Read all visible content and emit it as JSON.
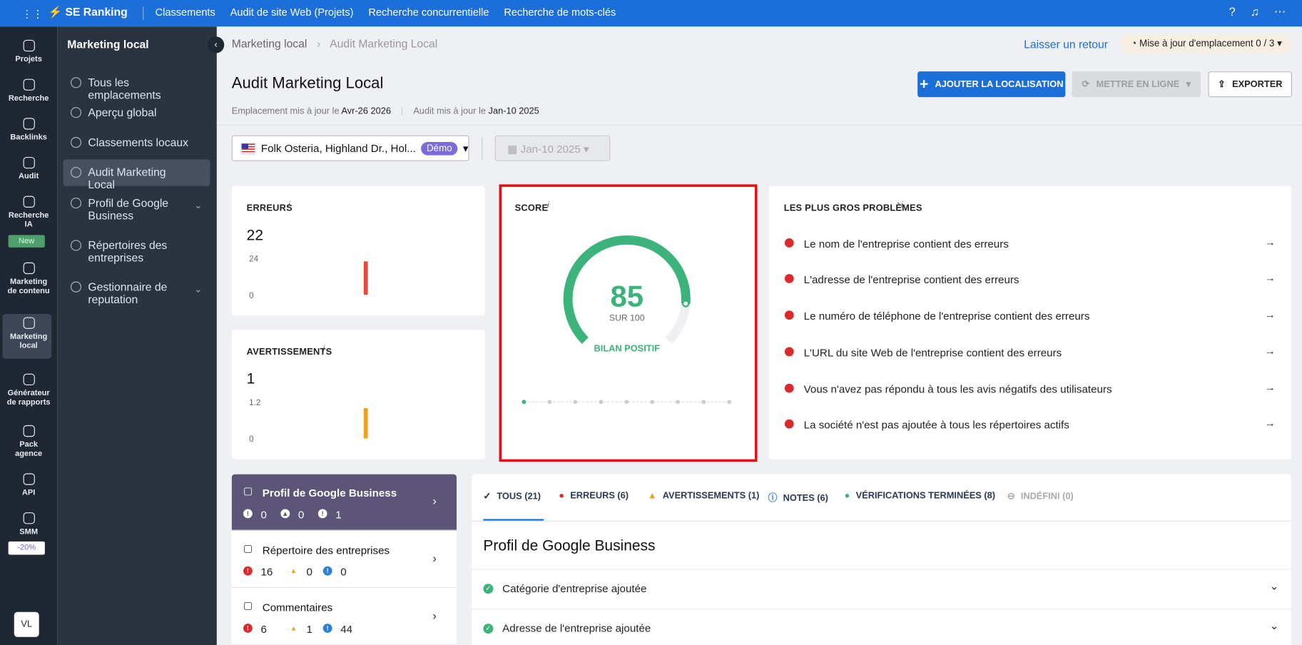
{
  "topbar": {
    "brand": "SE Ranking",
    "nav": [
      "Classements",
      "Audit de site Web (Projets)",
      "Recherche concurrentielle",
      "Recherche de mots-clés"
    ]
  },
  "rail": {
    "items": [
      "Projets",
      "Recherche",
      "Backlinks",
      "Audit",
      "Recherche IA",
      "Marketing de contenu",
      "Marketing local",
      "Générateur de rapports",
      "Pack agence",
      "API",
      "SMM"
    ],
    "new_badge": "New",
    "smm_badge": "-20%",
    "avatar": "VL"
  },
  "subnav": {
    "title": "Marketing local",
    "items": [
      "Tous les emplacements",
      "Aperçu global",
      "Classements locaux",
      "Audit Marketing Local",
      "Profil de Google Business",
      "Répertoires des entreprises",
      "Gestionnaire de reputation"
    ]
  },
  "breadcrumb": [
    "Marketing local",
    "Audit Marketing Local"
  ],
  "header": {
    "feedback": "Laisser un retour",
    "update_label": "Mise à jour d'emplacement",
    "update_count": "0 / 3",
    "title": "Audit Marketing Local",
    "loc_label": "Emplacement mis à jour le",
    "loc_date": "Avr-26 2026",
    "audit_label": "Audit mis à jour le",
    "audit_date": "Jan-10 2025",
    "buttons": [
      "AJOUTER LA LOCALISATION",
      "METTRE EN LIGNE",
      "EXPORTER"
    ]
  },
  "filters": {
    "location": "Folk Osteria, Highland Dr., Hol...",
    "badge": "Démo",
    "date": "Jan-10 2025"
  },
  "errors": {
    "title": "ERREURS",
    "value": 22,
    "ylim": [
      0,
      24
    ],
    "yticks": [
      24,
      0
    ]
  },
  "warnings": {
    "title": "AVERTISSEMENTS",
    "value": 1,
    "ylim": [
      0,
      1.2
    ],
    "yticks": [
      1.2,
      0
    ]
  },
  "score": {
    "title": "SCORE",
    "value": 85,
    "max": {
      "value": 100,
      "label": "SUR 100"
    },
    "verdict": "BILAN POSITIF"
  },
  "problems": {
    "title": "LES PLUS GROS PROBLÈMES",
    "items": [
      "Le nom de l'entreprise contient des erreurs",
      "L'adresse de l'entreprise contient des erreurs",
      "Le numéro de téléphone de l'entreprise contient des erreurs",
      "L'URL du site Web de l'entreprise contient des erreurs",
      "Vous n'avez pas répondu à tous les avis négatifs des utilisateurs",
      "La société n'est pas ajoutée à tous les répertoires actifs"
    ]
  },
  "groups": [
    {
      "name": "Profil de Google Business",
      "counts": [
        0,
        0,
        1
      ]
    },
    {
      "name": "Répertoire des entreprises",
      "counts": [
        16,
        0,
        0
      ]
    },
    {
      "name": "Commentaires",
      "counts": [
        6,
        1,
        44
      ]
    }
  ],
  "tabs": [
    "TOUS (21)",
    "ERREURS (6)",
    "AVERTISSEMENTS (1)",
    "NOTES (6)",
    "VÉRIFICATIONS TERMINÉES (8)",
    "INDÉFINI (0)"
  ],
  "section": {
    "title": "Profil de Google Business",
    "checks": [
      "Catégorie d'entreprise ajoutée",
      "Adresse de l'entreprise ajoutée"
    ]
  }
}
